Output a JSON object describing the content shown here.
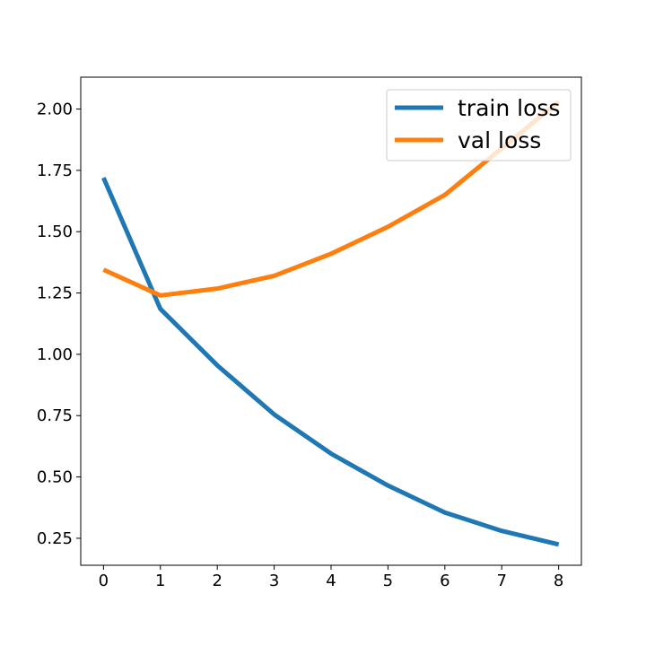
{
  "chart_data": {
    "type": "line",
    "title": "",
    "xlabel": "",
    "ylabel": "",
    "x": [
      0,
      1,
      2,
      3,
      4,
      5,
      6,
      7,
      8
    ],
    "xlim": [
      -0.4,
      8.4
    ],
    "ylim": [
      0.14,
      2.13
    ],
    "xticks": [
      0,
      1,
      2,
      3,
      4,
      5,
      6,
      7,
      8
    ],
    "yticks": [
      0.25,
      0.5,
      0.75,
      1.0,
      1.25,
      1.5,
      1.75,
      2.0
    ],
    "ytick_labels": [
      "0.25",
      "0.50",
      "0.75",
      "1.00",
      "1.25",
      "1.50",
      "1.75",
      "2.00"
    ],
    "grid": false,
    "legend_position": "upper-right",
    "series": [
      {
        "name": "train loss",
        "color": "#1f77b4",
        "values": [
          1.72,
          1.185,
          0.955,
          0.755,
          0.595,
          0.465,
          0.355,
          0.28,
          0.225
        ]
      },
      {
        "name": "val loss",
        "color": "#ff7f0e",
        "values": [
          1.345,
          1.24,
          1.268,
          1.32,
          1.41,
          1.52,
          1.65,
          1.84,
          2.03
        ]
      }
    ]
  }
}
